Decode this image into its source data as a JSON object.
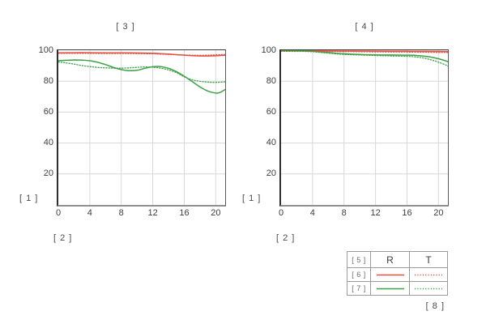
{
  "colors": {
    "red_series": "#e25244",
    "green_series": "#3fa047",
    "grid": "#d8d8d8",
    "text": "#3d3d3d",
    "legend_border": "#9b9b9b"
  },
  "chart_data": [
    {
      "type": "line",
      "title": "[ 3 ]",
      "ylabel": "[ 1 ]",
      "xlabel": "[ 2 ]",
      "xlim": [
        0,
        21.2
      ],
      "ylim": [
        0,
        100
      ],
      "x_ticks": [
        0,
        4,
        8,
        12,
        16,
        20
      ],
      "y_ticks": [
        20,
        40,
        60,
        80,
        100
      ],
      "grid": true,
      "legend_position": "bottom-right-shared",
      "series": [
        {
          "name": "R-red-solid",
          "color_key": "red_series",
          "style": "solid",
          "x": [
            0,
            2,
            4,
            6,
            8,
            10,
            12,
            13,
            14,
            15,
            16,
            17,
            18,
            19,
            20,
            21.2
          ],
          "y": [
            98.3,
            98.4,
            98.4,
            98.3,
            98.3,
            98.2,
            98.0,
            97.8,
            97.5,
            97.1,
            96.8,
            96.5,
            96.3,
            96.3,
            96.4,
            96.8
          ]
        },
        {
          "name": "T-red-dotted",
          "color_key": "red_series",
          "style": "dotted",
          "x": [
            0,
            2,
            4,
            6,
            8,
            10,
            12,
            13,
            14,
            15,
            16,
            17,
            18,
            19,
            20,
            21.2
          ],
          "y": [
            98.0,
            98.0,
            98.0,
            97.9,
            97.9,
            97.8,
            97.7,
            97.5,
            97.3,
            97.1,
            96.9,
            96.8,
            96.7,
            96.8,
            97.0,
            97.2
          ]
        },
        {
          "name": "R-green-solid",
          "color_key": "green_series",
          "style": "solid",
          "x": [
            0,
            1,
            2,
            3,
            4,
            5,
            6,
            7,
            8,
            9,
            10,
            11,
            12,
            13,
            14,
            15,
            16,
            17,
            18,
            19,
            20,
            20.5,
            21.2
          ],
          "y": [
            93.2,
            93.5,
            93.7,
            93.6,
            93.2,
            92.2,
            90.7,
            88.9,
            87.5,
            86.8,
            87.0,
            88.3,
            89.3,
            89.4,
            88.3,
            86.2,
            83.2,
            79.8,
            76.3,
            73.6,
            72.3,
            72.6,
            74.6
          ]
        },
        {
          "name": "T-green-dotted",
          "color_key": "green_series",
          "style": "dotted",
          "x": [
            0,
            1,
            2,
            3,
            4,
            5,
            6,
            7,
            8,
            9,
            10,
            11,
            12,
            13,
            14,
            15,
            16,
            17,
            18,
            19,
            20,
            21.2
          ],
          "y": [
            92.4,
            91.8,
            91.0,
            90.1,
            89.4,
            88.9,
            88.6,
            88.4,
            88.4,
            88.6,
            88.9,
            89.2,
            89.0,
            88.4,
            87.3,
            85.5,
            82.8,
            80.9,
            79.9,
            79.4,
            79.2,
            79.6
          ]
        }
      ]
    },
    {
      "type": "line",
      "title": "[ 4 ]",
      "ylabel": "[ 1 ]",
      "xlabel": "[ 2 ]",
      "xlim": [
        0,
        21.2
      ],
      "ylim": [
        0,
        100
      ],
      "x_ticks": [
        0,
        4,
        8,
        12,
        16,
        20
      ],
      "y_ticks": [
        20,
        40,
        60,
        80,
        100
      ],
      "grid": true,
      "legend_position": "bottom-right-shared",
      "series": [
        {
          "name": "R-red-solid",
          "color_key": "red_series",
          "style": "solid",
          "x": [
            0,
            4,
            8,
            12,
            16,
            20,
            21.2
          ],
          "y": [
            99.6,
            99.6,
            99.5,
            99.4,
            99.3,
            99.2,
            99.1
          ]
        },
        {
          "name": "T-red-dotted",
          "color_key": "red_series",
          "style": "dotted",
          "x": [
            0,
            4,
            8,
            12,
            16,
            20,
            21.2
          ],
          "y": [
            99.3,
            99.2,
            99.1,
            98.9,
            98.8,
            98.6,
            98.5
          ]
        },
        {
          "name": "R-green-solid",
          "color_key": "green_series",
          "style": "solid",
          "x": [
            0,
            2,
            4,
            6,
            8,
            10,
            12,
            14,
            16,
            17,
            18,
            19,
            20,
            21,
            21.2
          ],
          "y": [
            99.8,
            99.7,
            99.3,
            98.5,
            97.7,
            97.2,
            97.0,
            96.9,
            96.8,
            96.7,
            96.3,
            95.6,
            94.5,
            93.0,
            92.5
          ]
        },
        {
          "name": "T-green-dotted",
          "color_key": "green_series",
          "style": "dotted",
          "x": [
            0,
            2,
            4,
            6,
            8,
            10,
            12,
            14,
            16,
            17,
            18,
            19,
            20,
            21,
            21.2
          ],
          "y": [
            99.6,
            99.4,
            99.0,
            98.1,
            97.3,
            96.9,
            96.6,
            96.3,
            96.0,
            95.7,
            95.1,
            93.9,
            92.3,
            90.3,
            89.7
          ]
        }
      ]
    }
  ],
  "legend": {
    "corner_label": "[ 5 ]",
    "columns": [
      "R",
      "T"
    ],
    "rows": [
      {
        "label": "[ 6 ]",
        "color_key": "red_series"
      },
      {
        "label": "[ 7 ]",
        "color_key": "green_series"
      }
    ],
    "note": "[ 8 ]"
  }
}
